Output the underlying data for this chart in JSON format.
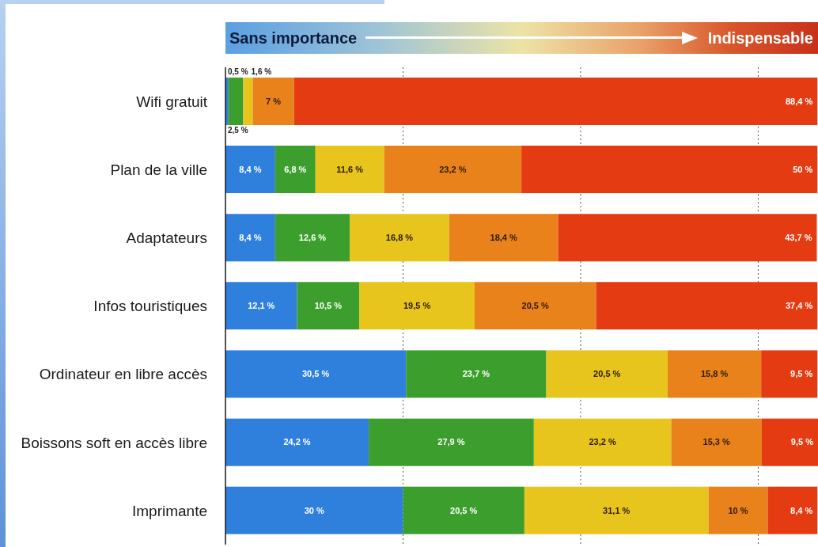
{
  "chart_data": {
    "type": "bar",
    "orientation": "horizontal",
    "stacked": true,
    "categories": [
      "Wifi gratuit",
      "Plan de la ville",
      "Adaptateurs",
      "Infos touristiques",
      "Ordinateur en libre accès",
      "Boissons soft en accès libre",
      "Imprimante"
    ],
    "series": [
      {
        "color": "#2f80dc",
        "values": [
          0.5,
          8.4,
          8.4,
          12.1,
          30.5,
          24.2,
          30
        ],
        "value_labels": [
          "0,5 %",
          "8,4 %",
          "8,4 %",
          "12,1 %",
          "30,5 %",
          "24,2 %",
          "30 %"
        ]
      },
      {
        "color": "#3c9e2c",
        "values": [
          2.5,
          6.8,
          12.6,
          10.5,
          23.7,
          27.9,
          20.5
        ],
        "value_labels": [
          "2,5 %",
          "6,8 %",
          "12,6 %",
          "10,5 %",
          "23,7 %",
          "27,9 %",
          "20,5 %"
        ]
      },
      {
        "color": "#e7c51c",
        "values": [
          1.6,
          11.6,
          16.8,
          19.5,
          20.5,
          23.2,
          31.1
        ],
        "value_labels": [
          "1,6 %",
          "11,6 %",
          "16,8 %",
          "19,5 %",
          "20,5 %",
          "23,2 %",
          "31,1 %"
        ]
      },
      {
        "color": "#e9821a",
        "values": [
          7,
          23.2,
          18.4,
          20.5,
          15.8,
          15.3,
          10
        ],
        "value_labels": [
          "7 %",
          "23,2 %",
          "18,4 %",
          "20,5 %",
          "15,8 %",
          "15,3 %",
          "10 %"
        ]
      },
      {
        "color": "#e53b12",
        "values": [
          88.4,
          50,
          43.7,
          37.4,
          9.5,
          9.5,
          8.4
        ],
        "value_labels": [
          "88,4 %",
          "50 %",
          "43,7 %",
          "37,4 %",
          "9,5 %",
          "9,5 %",
          "8,4 %"
        ]
      }
    ],
    "xlim": [
      0,
      100.1
    ],
    "xticks": [
      {
        "value": 30,
        "label": null
      },
      {
        "value": 60,
        "label": null
      },
      {
        "value": 90,
        "label": null
      }
    ],
    "grid": "x",
    "tick_labels": "y",
    "annotations": [
      "Sans importance",
      "Indispensable"
    ]
  }
}
